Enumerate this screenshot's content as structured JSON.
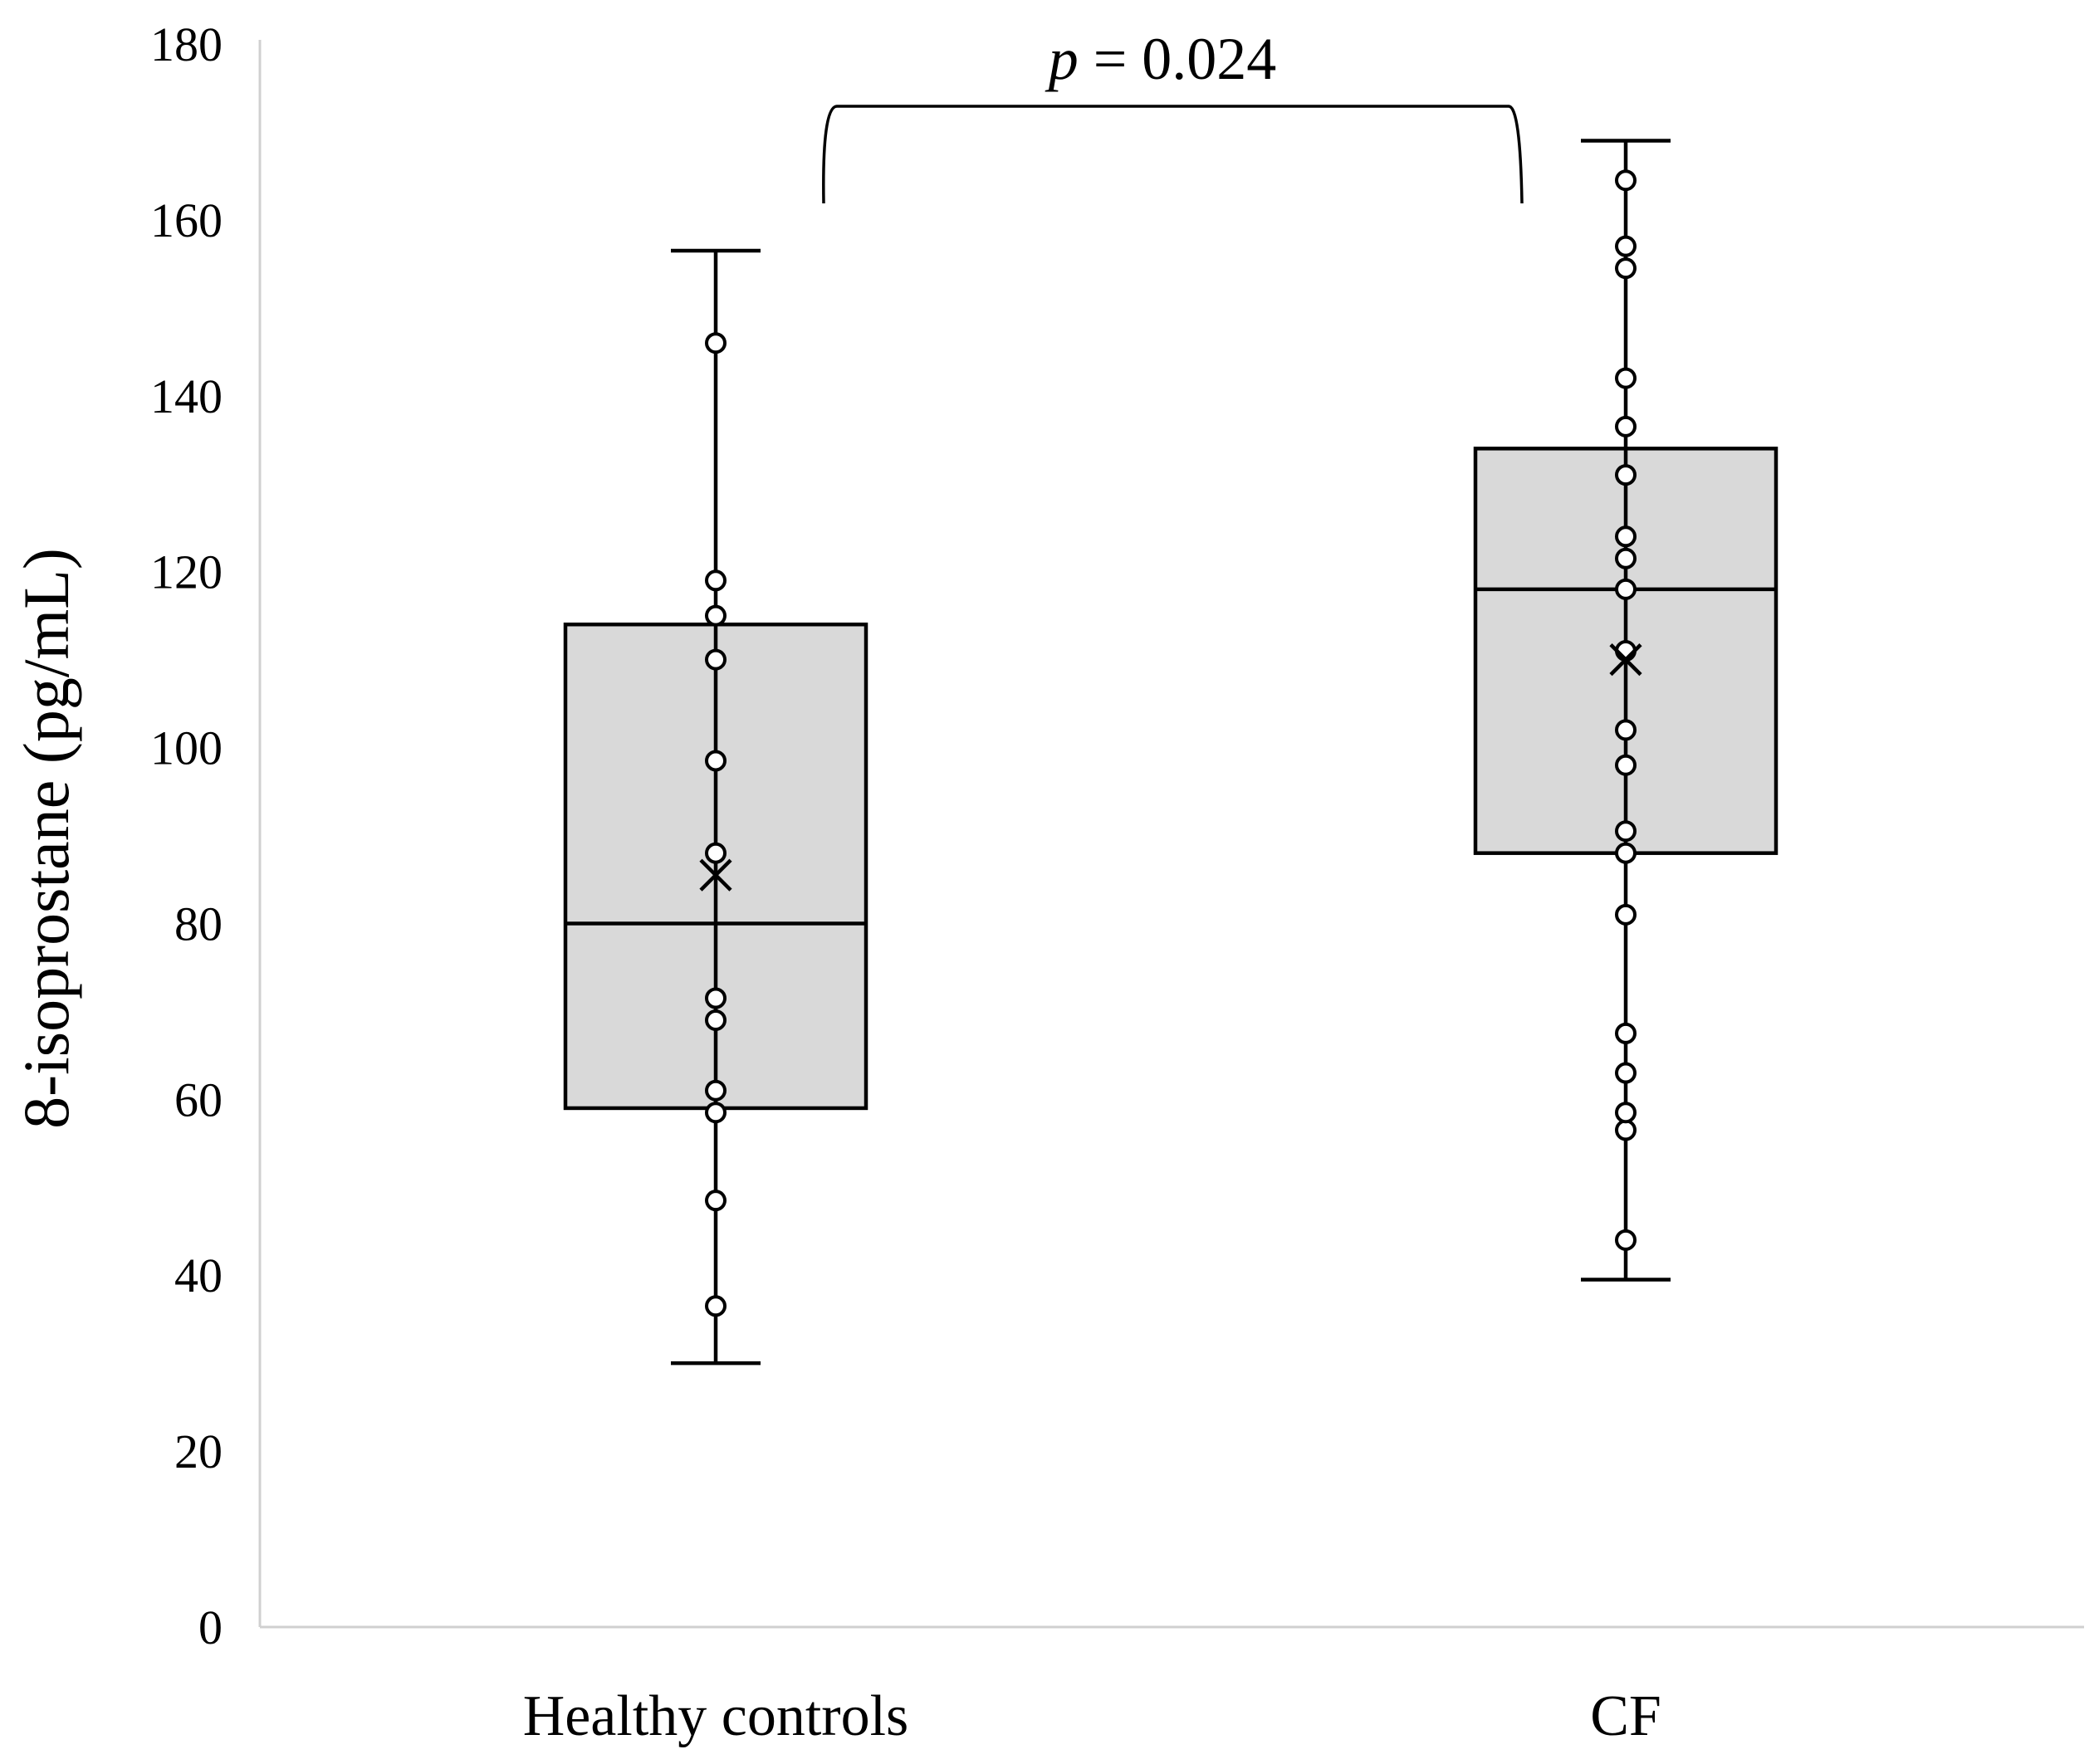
{
  "chart_data": {
    "type": "box",
    "title": "",
    "xlabel": "",
    "ylabel": "8-isoprostane (pg/mL)",
    "ylim": [
      0,
      180
    ],
    "yticks": [
      0,
      20,
      40,
      60,
      80,
      100,
      120,
      140,
      160,
      180
    ],
    "grid": false,
    "categories": [
      "Healthy controls",
      "CF"
    ],
    "series": [
      {
        "name": "Healthy controls",
        "whisker_low": 30,
        "q1": 59,
        "median": 80,
        "q3": 114,
        "whisker_high": 156.5,
        "mean": 85.5,
        "points": [
          36.5,
          48.5,
          58.5,
          61,
          69,
          71.5,
          88,
          98.5,
          110,
          115,
          119,
          146
        ]
      },
      {
        "name": "CF",
        "whisker_low": 39.5,
        "q1": 88,
        "median": 118,
        "q3": 134,
        "whisker_high": 169,
        "mean": 110,
        "points": [
          44,
          56.5,
          58.5,
          63,
          67.5,
          81,
          88,
          90.5,
          98,
          102,
          111,
          118,
          121.5,
          124,
          131,
          136.5,
          142,
          154.5,
          157,
          164.5
        ]
      }
    ],
    "annotations": [
      {
        "text_italic": "p",
        "text_rest": " = 0.024",
        "between": [
          "Healthy controls",
          "CF"
        ]
      }
    ]
  },
  "colors": {
    "box_fill": "#d9d9d9",
    "line": "#000000",
    "axis": "#d0d0d0",
    "point_fill": "#ffffff"
  }
}
